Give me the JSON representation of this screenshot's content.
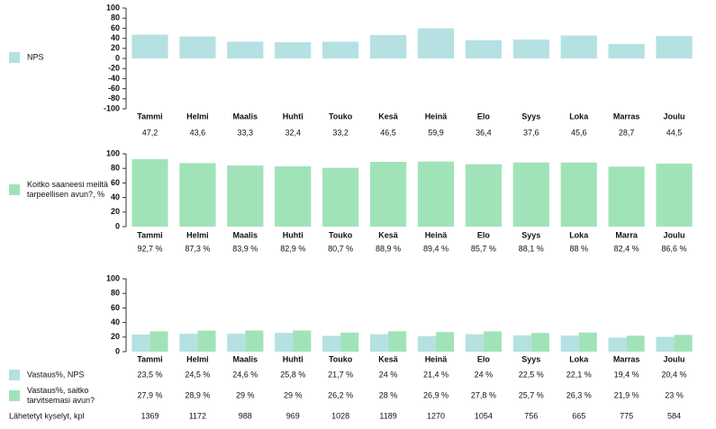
{
  "chart_data": [
    {
      "type": "bar",
      "categories": [
        "Tammi",
        "Helmi",
        "Maalis",
        "Huhti",
        "Touko",
        "Kesä",
        "Heinä",
        "Elo",
        "Syys",
        "Loka",
        "Marras",
        "Joulu"
      ],
      "series": [
        {
          "name": "NPS",
          "color": "#b5e1e2",
          "values": [
            47.2,
            43.6,
            33.3,
            32.4,
            33.2,
            46.5,
            59.9,
            36.4,
            37.6,
            45.6,
            28.7,
            44.5
          ],
          "value_labels": [
            "47,2",
            "43,6",
            "33,3",
            "32,4",
            "33,2",
            "46,5",
            "59,9",
            "36,4",
            "37,6",
            "45,6",
            "28,7",
            "44,5"
          ]
        }
      ],
      "ylim": [
        -100,
        100
      ],
      "yticks": [
        -100,
        -80,
        -60,
        -40,
        -20,
        0,
        20,
        40,
        60,
        80,
        100
      ],
      "grid": false
    },
    {
      "type": "bar",
      "categories": [
        "Tammi",
        "Helmi",
        "Maalis",
        "Huhti",
        "Touko",
        "Kesä",
        "Heinä",
        "Elo",
        "Syys",
        "Loka",
        "Marra",
        "Joulu"
      ],
      "series": [
        {
          "name": "Koitko saaneesi meiltä tarpeellisen avun?, %",
          "color": "#a1e3b9",
          "values": [
            92.7,
            87.3,
            83.9,
            82.9,
            80.7,
            88.9,
            89.4,
            85.7,
            88.1,
            88,
            82.4,
            86.6
          ],
          "value_labels": [
            "92,7 %",
            "87,3 %",
            "83,9 %",
            "82,9 %",
            "80,7 %",
            "88,9 %",
            "89,4 %",
            "85,7 %",
            "88,1 %",
            "88 %",
            "82,4 %",
            "86,6 %"
          ]
        }
      ],
      "ylim": [
        0,
        100
      ],
      "yticks": [
        0,
        20,
        40,
        60,
        80,
        100
      ],
      "grid": false
    },
    {
      "type": "bar",
      "categories": [
        "Tammi",
        "Helmi",
        "Maalis",
        "Huhti",
        "Touko",
        "Kesä",
        "Heinä",
        "Elo",
        "Syys",
        "Loka",
        "Marras",
        "Joulu"
      ],
      "series": [
        {
          "name": "Vastaus%, NPS",
          "color": "#b5e1e2",
          "values": [
            23.5,
            24.5,
            24.6,
            25.8,
            21.7,
            24,
            21.4,
            24,
            22.5,
            22.1,
            19.4,
            20.4
          ],
          "value_labels": [
            "23,5 %",
            "24,5 %",
            "24,6 %",
            "25,8 %",
            "21,7 %",
            "24 %",
            "21,4 %",
            "24 %",
            "22,5 %",
            "22,1 %",
            "19,4 %",
            "20,4 %"
          ]
        },
        {
          "name": "Vastaus%, saitko tarvitsemasi avun?",
          "color": "#a1e3b9",
          "values": [
            27.9,
            28.9,
            29,
            29,
            26.2,
            28,
            26.9,
            27.8,
            25.7,
            26.3,
            21.9,
            23
          ],
          "value_labels": [
            "27,9 %",
            "28,9 %",
            "29 %",
            "29 %",
            "26,2 %",
            "28 %",
            "26,9 %",
            "27,8 %",
            "25,7 %",
            "26,3 %",
            "21,9 %",
            "23 %"
          ]
        }
      ],
      "extra_row": {
        "name": "Lähetetyt kyselyt, kpl",
        "values": [
          1369,
          1172,
          988,
          969,
          1028,
          1189,
          1270,
          1054,
          756,
          665,
          775,
          584
        ]
      },
      "ylim": [
        0,
        100
      ],
      "yticks": [
        0,
        20,
        40,
        60,
        80,
        100
      ],
      "grid": false
    }
  ]
}
